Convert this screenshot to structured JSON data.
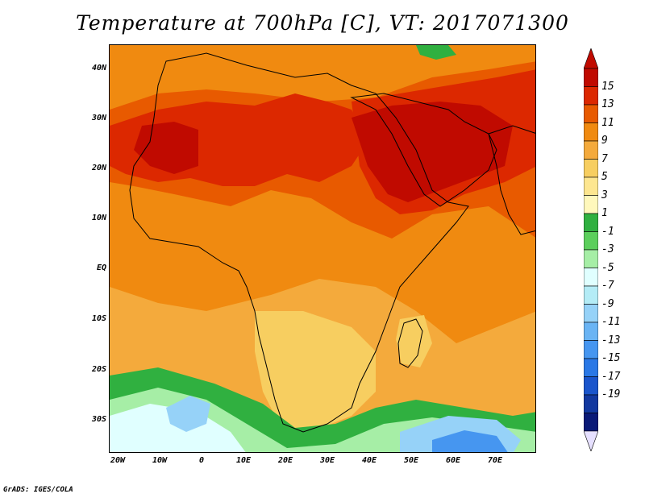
{
  "title": "Temperature at 700hPa [C], VT: 2017071300",
  "credit": "GrADS: IGES/COLA",
  "lat_labels": [
    "40N",
    "30N",
    "20N",
    "10N",
    "EQ",
    "10S",
    "20S",
    "30S"
  ],
  "lon_labels": [
    "20W",
    "10W",
    "0",
    "10E",
    "20E",
    "30E",
    "40E",
    "50E",
    "60E",
    "70E"
  ],
  "colorbar": {
    "labels": [
      "15",
      "13",
      "11",
      "9",
      "7",
      "5",
      "3",
      "1",
      "-1",
      "-3",
      "-5",
      "-7",
      "-9",
      "-11",
      "-13",
      "-15",
      "-17",
      "-19"
    ],
    "colors": [
      "#c00a00",
      "#dc2800",
      "#e85a00",
      "#f08a10",
      "#f4aa3c",
      "#f7ce60",
      "#fde690",
      "#fff8bc",
      "#30b040",
      "#5ccf5c",
      "#a6eea6",
      "#e0ffff",
      "#b4ecf6",
      "#96d2f8",
      "#6ab4f4",
      "#4696f0",
      "#2a78e6",
      "#1a55cc",
      "#1238a0",
      "#0a1a78"
    ],
    "top_arrow_color": "#c00a00",
    "bottom_arrow_color": "#e6e0ff"
  },
  "map": {
    "ocean_color": "#f4aa3c",
    "region_colors": {
      "hot_core": "#c00a00",
      "hot": "#dc2800",
      "warm": "#e85a00",
      "mild": "#f08a10",
      "cool": "#f7ce60",
      "green": "#30b040",
      "light_green": "#a6eea6",
      "pale": "#e0ffff",
      "light_blue": "#96d2f8",
      "blue": "#4696f0"
    }
  }
}
